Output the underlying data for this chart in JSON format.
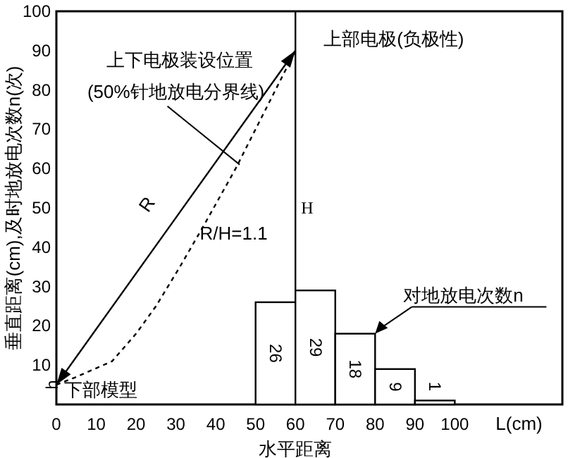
{
  "chart_data": {
    "type": "histogram",
    "bins": [
      50,
      60,
      70,
      80,
      90,
      100
    ],
    "values": [
      26,
      29,
      18,
      9,
      1
    ],
    "color": "#ffffff",
    "value_labels": [
      "26",
      "29",
      "18",
      "9",
      "1"
    ],
    "xlabel": "水平距离",
    "ylabel": "垂直距离(cm),及时地放电次数n(次)",
    "xlim": [
      0,
      127
    ],
    "ylim": [
      0,
      100
    ],
    "xticks": [
      0,
      10,
      20,
      30,
      40,
      50,
      60,
      70,
      80,
      90,
      100
    ],
    "yticks": [
      10,
      20,
      30,
      40,
      50,
      60,
      70,
      80,
      90,
      100
    ],
    "grid": false,
    "series": [
      {
        "type": "line",
        "x": [
          0,
          5,
          14,
          20,
          25,
          31,
          37,
          45,
          52,
          60
        ],
        "values": [
          5,
          7,
          11,
          18,
          25,
          35,
          45.5,
          60,
          74,
          90
        ],
        "color": "#000000",
        "line_style": "dashed"
      }
    ],
    "ref_lines": [
      {
        "axis": "x",
        "value": 60,
        "label": "上部电极(负极性)"
      }
    ],
    "annotations": [
      "上下电极装设位置",
      {
        "text": "(50%针地放电分界线)",
        "x": 46,
        "y": 61
      },
      "R",
      "R/H=1.1",
      {
        "text": "H",
        "x": 60,
        "y": 50
      },
      {
        "text": "h",
        "x": 0,
        "y": 5
      },
      "下部模型",
      {
        "text": "对地放电次数n",
        "x": 80,
        "y": 18
      },
      "L(cm)"
    ]
  }
}
